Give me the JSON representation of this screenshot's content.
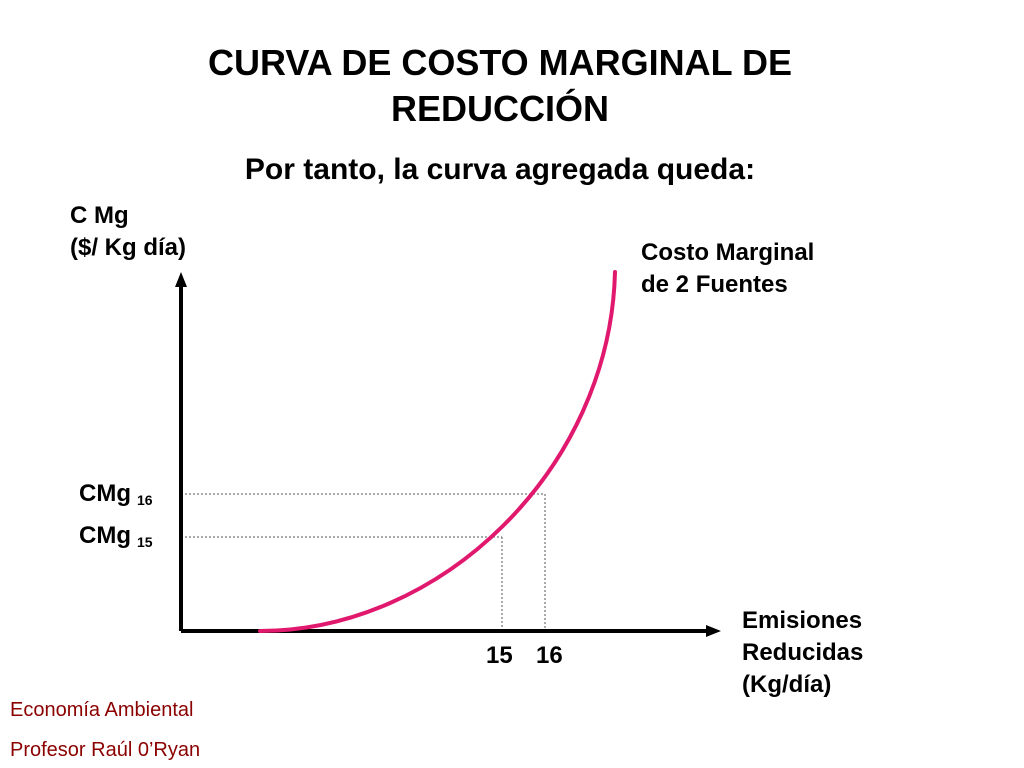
{
  "title": {
    "line1": "CURVA DE COSTO MARGINAL DE",
    "line2": "REDUCCIÓN"
  },
  "subtitle": "Por tanto, la curva agregada queda:",
  "colors": {
    "curve": "#e0186e",
    "axis": "#000000",
    "guide": "#555555",
    "footer": "#8b0000"
  },
  "chart_data": {
    "type": "line",
    "ylabel": {
      "line1": "C Mg",
      "line2": "($/ Kg día)"
    },
    "xlabel": {
      "line1": "Emisiones",
      "line2": "Reducidas",
      "line3": "(Kg/día)"
    },
    "curve_label": {
      "line1": "Costo Marginal",
      "line2": "de 2 Fuentes"
    },
    "x_ticks": [
      {
        "value": 15,
        "label": "15"
      },
      {
        "value": 16,
        "label": "16"
      }
    ],
    "y_ticks": [
      {
        "label": "CMg",
        "sub": "15"
      },
      {
        "label": "CMg",
        "sub": "16"
      }
    ],
    "grid": false,
    "guides": "dotted lines from x=15 and x=16 to the curve and across to the y-axis"
  },
  "footer": {
    "course": "Economía Ambiental",
    "professor": "Profesor Raúl 0’Ryan"
  }
}
